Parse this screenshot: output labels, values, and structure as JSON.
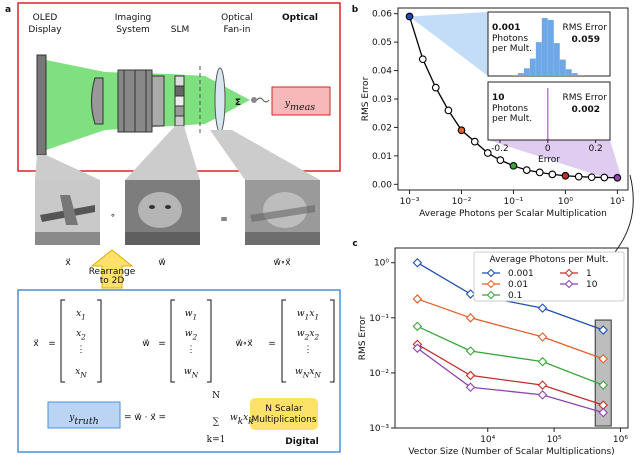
{
  "diagram": {
    "panel_label": "a",
    "optical_title": "Optical",
    "components": [
      [
        "OLED",
        "Display"
      ],
      [
        "Imaging",
        "System"
      ],
      [
        "SLM"
      ],
      [
        "Optical",
        "Fan-in"
      ]
    ],
    "sigma": "Σ",
    "y_meas": [
      "y",
      "meas"
    ],
    "image_labels": [
      "x⃗",
      "w⃗",
      "w⃗∘x⃗"
    ],
    "operator_circ": "∘",
    "operator_eq": "=",
    "rearrange": [
      "Rearrange",
      "to 2D"
    ],
    "digital_title": "Digital",
    "vectors": [
      {
        "name": "x⃗",
        "entries": [
          [
            [
              "x",
              "1"
            ]
          ],
          [
            [
              "x",
              "2"
            ]
          ],
          "⋮",
          [
            [
              "x",
              "N"
            ]
          ]
        ]
      },
      {
        "name": "w⃗",
        "entries": [
          [
            [
              "w",
              "1"
            ]
          ],
          [
            [
              "w",
              "2"
            ]
          ],
          "⋮",
          [
            [
              "w",
              "N"
            ]
          ]
        ]
      },
      {
        "name": "w⃗∘x⃗",
        "entries": [
          [
            [
              "w",
              "1"
            ],
            [
              "x",
              "1"
            ]
          ],
          [
            [
              "w",
              "2"
            ],
            [
              "x",
              "2"
            ]
          ],
          "⋮",
          [
            [
              "w",
              "N"
            ],
            [
              "x",
              "N"
            ]
          ]
        ]
      }
    ],
    "equation": {
      "lhs": [
        "y",
        "truth"
      ],
      "middle": "= w⃗ · x⃗ =",
      "sum": "∑",
      "sum_top": "N",
      "sum_bottom": "k=1",
      "term": [
        [
          "w",
          "k"
        ],
        [
          "x",
          "k"
        ]
      ]
    },
    "note": [
      "N Scalar",
      "Multiplications"
    ]
  },
  "chart_data": [
    {
      "type": "line",
      "panel_label": "b",
      "xlabel": "Average Photons per Scalar Multiplication",
      "ylabel": "RMS Error",
      "xscale": "log",
      "xlim": [
        0.0006,
        16
      ],
      "ylim": [
        -0.002,
        0.062
      ],
      "xticks": [
        {
          "value": 0.001,
          "label": "10⁻³"
        },
        {
          "value": 0.01,
          "label": "10⁻²"
        },
        {
          "value": 0.1,
          "label": "10⁻¹"
        },
        {
          "value": 1,
          "label": "10⁰"
        },
        {
          "value": 10,
          "label": "10¹"
        }
      ],
      "yticks": [
        {
          "value": 0,
          "label": "0.00"
        },
        0.01,
        0.02,
        0.03,
        0.04,
        0.05,
        0.06
      ],
      "x": [
        0.001,
        0.0018,
        0.0032,
        0.0056,
        0.01,
        0.018,
        0.032,
        0.056,
        0.1,
        0.18,
        0.32,
        0.56,
        1,
        1.8,
        3.2,
        5.6,
        10
      ],
      "series": [
        {
          "color": "#000000",
          "values": [
            0.059,
            0.044,
            0.034,
            0.026,
            0.019,
            0.015,
            0.011,
            0.0085,
            0.0065,
            0.005,
            0.0042,
            0.0035,
            0.003,
            0.0027,
            0.0025,
            0.0024,
            0.0023
          ],
          "marker_colors": [
            "#1f4fb4",
            "#ffffff",
            "#ffffff",
            "#ffffff",
            "#e0602a",
            "#ffffff",
            "#ffffff",
            "#ffffff",
            "#3aa53a",
            "#ffffff",
            "#ffffff",
            "#ffffff",
            "#c0312a",
            "#ffffff",
            "#ffffff",
            "#ffffff",
            "#8e44ad"
          ]
        }
      ],
      "insets": [
        {
          "photons": 0.001,
          "caption": [
            "Photons",
            "per Mult."
          ],
          "metric": "RMS Error",
          "metric_value": 0.059,
          "color": "#6fa8e6",
          "bins": [
            -0.15,
            -0.125,
            -0.1,
            -0.075,
            -0.05,
            -0.025,
            0,
            0.025,
            0.05,
            0.075,
            0.1,
            0.125,
            0.15
          ],
          "counts": [
            1,
            3,
            8,
            18,
            35,
            60,
            58,
            34,
            17,
            7,
            3,
            1
          ]
        },
        {
          "photons": 10,
          "caption": [
            "Photons",
            "per Mult."
          ],
          "metric": "RMS Error",
          "metric_value": 0.002,
          "color": "#8e44ad",
          "bins": [
            -0.006,
            -0.002,
            0.002,
            0.006
          ],
          "counts": [
            2,
            100,
            2
          ]
        }
      ],
      "inset_xlim": [
        -0.25,
        0.26
      ],
      "inset_xticks": [
        -0.2,
        0,
        0.2
      ],
      "inset_xlabel": "Error"
    },
    {
      "type": "line",
      "panel_label": "c",
      "xlabel": "Vector Size (Number of Scalar Multiplications)",
      "ylabel": "RMS Error",
      "xscale": "log",
      "yscale": "log",
      "xlim": [
        400,
        1300000
      ],
      "ylim": [
        0.001,
        1.85
      ],
      "xticks": [
        {
          "value": 10000,
          "label": "10⁴"
        },
        {
          "value": 100000,
          "label": "10⁵"
        },
        {
          "value": 1000000,
          "label": "10⁶"
        }
      ],
      "yticks": [
        {
          "value": 1,
          "label": "10⁰"
        },
        {
          "value": 0.1,
          "label": "10⁻¹"
        },
        {
          "value": 0.01,
          "label": "10⁻²"
        },
        {
          "value": 0.001,
          "label": "10⁻³"
        }
      ],
      "x": [
        870,
        5500,
        67000,
        550000
      ],
      "legend_title": "Average Photons per Mult.",
      "legend_loc": "upper right",
      "series": [
        {
          "name": "0.001",
          "color": "#1f4fb4",
          "values": [
            1.0,
            0.27,
            0.15,
            0.06
          ]
        },
        {
          "name": "0.01",
          "color": "#e0602a",
          "values": [
            0.22,
            0.1,
            0.045,
            0.018
          ]
        },
        {
          "name": "0.1",
          "color": "#3aa53a",
          "values": [
            0.07,
            0.025,
            0.016,
            0.006
          ]
        },
        {
          "name": "1",
          "color": "#c0312a",
          "values": [
            0.033,
            0.009,
            0.006,
            0.0026
          ]
        },
        {
          "name": "10",
          "color": "#8e44ad",
          "values": [
            0.028,
            0.0055,
            0.004,
            0.0019
          ]
        }
      ]
    }
  ]
}
